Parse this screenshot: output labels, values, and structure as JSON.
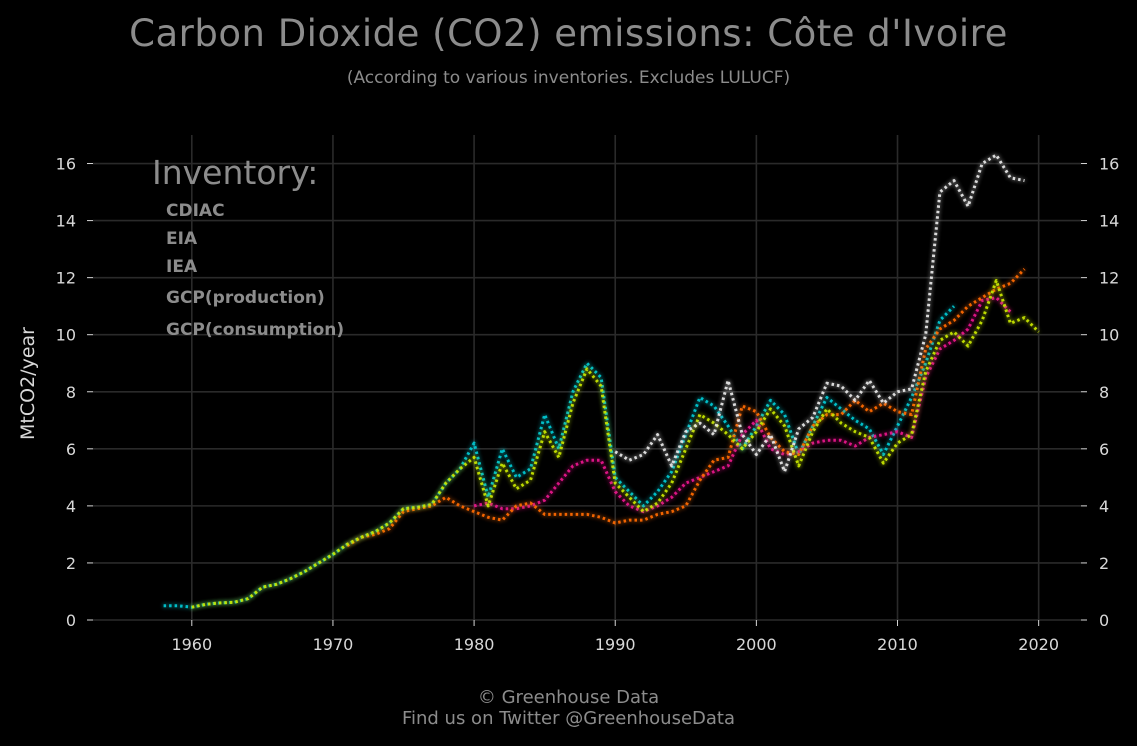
{
  "header": {
    "title": "Carbon Dioxide (CO2) emissions: Côte d'Ivoire",
    "subtitle": "(According to various inventories. Excludes LULUCF)"
  },
  "footer": {
    "line1": "© Greenhouse Data",
    "line2": "Find us on Twitter @GreenhouseData"
  },
  "chart_data": {
    "type": "line",
    "title": "Carbon Dioxide (CO2) emissions: Côte d'Ivoire",
    "subtitle": "(According to various inventories. Excludes LULUCF)",
    "xlabel": "",
    "ylabel": "MtCO2/year",
    "xlim": [
      1953,
      2023
    ],
    "ylim": [
      0,
      17
    ],
    "x_ticks": [
      1960,
      1970,
      1980,
      1990,
      2000,
      2010,
      2020
    ],
    "y_ticks": [
      0,
      2,
      4,
      6,
      8,
      10,
      12,
      14,
      16
    ],
    "grid": true,
    "legend": {
      "title": "Inventory:",
      "placement": "top-left"
    },
    "background": "#000000",
    "line_style": "dotted",
    "series": [
      {
        "name": "CDIAC",
        "color": "#00c8d2",
        "x": [
          1958,
          1959,
          1960,
          1961,
          1962,
          1963,
          1964,
          1965,
          1966,
          1967,
          1968,
          1969,
          1970,
          1971,
          1972,
          1973,
          1974,
          1975,
          1976,
          1977,
          1978,
          1979,
          1980,
          1981,
          1982,
          1983,
          1984,
          1985,
          1986,
          1987,
          1988,
          1989,
          1990,
          1991,
          1992,
          1993,
          1994,
          1995,
          1996,
          1997,
          1998,
          1999,
          2000,
          2001,
          2002,
          2003,
          2004,
          2005,
          2006,
          2007,
          2008,
          2009,
          2010,
          2011,
          2012,
          2013,
          2014
        ],
        "y": [
          0.5,
          0.5,
          0.45,
          0.55,
          0.6,
          0.62,
          0.75,
          1.15,
          1.25,
          1.45,
          1.7,
          2.0,
          2.3,
          2.65,
          2.9,
          3.1,
          3.4,
          3.9,
          3.95,
          4.05,
          4.8,
          5.3,
          6.2,
          4.3,
          6.0,
          5.0,
          5.3,
          7.2,
          6.0,
          8.0,
          9.0,
          8.5,
          5.0,
          4.5,
          4.0,
          4.5,
          5.2,
          6.5,
          7.8,
          7.5,
          6.8,
          6.0,
          6.8,
          7.7,
          7.2,
          5.8,
          6.8,
          7.8,
          7.4,
          7.0,
          6.7,
          5.8,
          6.8,
          7.8,
          9.0,
          10.5,
          11.0
        ]
      },
      {
        "name": "EIA",
        "color": "#e8198c",
        "x": [
          1980,
          1981,
          1982,
          1983,
          1984,
          1985,
          1986,
          1987,
          1988,
          1989,
          1990,
          1991,
          1992,
          1993,
          1994,
          1995,
          1996,
          1997,
          1998,
          1999,
          2000,
          2001,
          2002,
          2003,
          2004,
          2005,
          2006,
          2007,
          2008,
          2009,
          2010,
          2011,
          2012,
          2013,
          2014,
          2015,
          2016,
          2017,
          2018
        ],
        "y": [
          4.0,
          4.1,
          3.9,
          3.9,
          4.0,
          4.2,
          4.8,
          5.4,
          5.6,
          5.6,
          4.5,
          4.0,
          3.8,
          4.0,
          4.3,
          4.8,
          5.0,
          5.2,
          5.4,
          6.5,
          7.0,
          6.0,
          5.8,
          5.9,
          6.2,
          6.3,
          6.3,
          6.1,
          6.4,
          6.5,
          6.6,
          6.4,
          8.5,
          9.5,
          9.8,
          10.2,
          11.2,
          11.3,
          10.8
        ]
      },
      {
        "name": "IEA",
        "color": "#ff6a00",
        "x": [
          1971,
          1972,
          1973,
          1974,
          1975,
          1976,
          1977,
          1978,
          1979,
          1980,
          1981,
          1982,
          1983,
          1984,
          1985,
          1986,
          1987,
          1988,
          1989,
          1990,
          1991,
          1992,
          1993,
          1994,
          1995,
          1996,
          1997,
          1998,
          1999,
          2000,
          2001,
          2002,
          2003,
          2004,
          2005,
          2006,
          2007,
          2008,
          2009,
          2010,
          2011,
          2012,
          2013,
          2014,
          2015,
          2016,
          2017,
          2018,
          2019
        ],
        "y": [
          2.6,
          2.9,
          3.0,
          3.2,
          3.8,
          3.9,
          4.0,
          4.3,
          4.0,
          3.8,
          3.6,
          3.5,
          4.0,
          4.1,
          3.7,
          3.7,
          3.7,
          3.7,
          3.6,
          3.4,
          3.5,
          3.5,
          3.7,
          3.8,
          4.0,
          4.9,
          5.6,
          5.7,
          7.5,
          7.3,
          6.4,
          5.9,
          5.8,
          6.8,
          7.2,
          7.2,
          7.7,
          7.3,
          7.6,
          7.3,
          7.2,
          9.5,
          10.2,
          10.5,
          11.0,
          11.3,
          11.6,
          11.8,
          12.3
        ]
      },
      {
        "name": "GCP(production)",
        "color": "#c8e600",
        "x": [
          1960,
          1961,
          1962,
          1963,
          1964,
          1965,
          1966,
          1967,
          1968,
          1969,
          1970,
          1971,
          1972,
          1973,
          1974,
          1975,
          1976,
          1977,
          1978,
          1979,
          1980,
          1981,
          1982,
          1983,
          1984,
          1985,
          1986,
          1987,
          1988,
          1989,
          1990,
          1991,
          1992,
          1993,
          1994,
          1995,
          1996,
          1997,
          1998,
          1999,
          2000,
          2001,
          2002,
          2003,
          2004,
          2005,
          2006,
          2007,
          2008,
          2009,
          2010,
          2011,
          2012,
          2013,
          2014,
          2015,
          2016,
          2017,
          2018,
          2019,
          2020
        ],
        "y": [
          0.45,
          0.55,
          0.6,
          0.62,
          0.75,
          1.15,
          1.25,
          1.45,
          1.7,
          2.0,
          2.3,
          2.65,
          2.9,
          3.1,
          3.4,
          3.9,
          3.95,
          4.05,
          4.8,
          5.3,
          5.7,
          4.0,
          5.5,
          4.6,
          4.9,
          6.6,
          5.7,
          7.6,
          8.8,
          8.2,
          4.8,
          4.3,
          3.8,
          4.1,
          4.8,
          6.0,
          7.2,
          6.9,
          6.5,
          6.0,
          6.6,
          7.4,
          6.8,
          5.4,
          6.6,
          7.4,
          6.9,
          6.6,
          6.4,
          5.5,
          6.2,
          6.5,
          8.7,
          9.8,
          10.1,
          9.6,
          10.5,
          11.9,
          10.4,
          10.6,
          10.1
        ]
      },
      {
        "name": "GCP(consumption)",
        "color": "#e6e6e6",
        "x": [
          1990,
          1991,
          1992,
          1993,
          1994,
          1995,
          1996,
          1997,
          1998,
          1999,
          2000,
          2001,
          2002,
          2003,
          2004,
          2005,
          2006,
          2007,
          2008,
          2009,
          2010,
          2011,
          2012,
          2013,
          2014,
          2015,
          2016,
          2017,
          2018,
          2019
        ],
        "y": [
          5.9,
          5.6,
          5.8,
          6.5,
          5.4,
          6.6,
          6.9,
          6.5,
          8.4,
          6.5,
          5.8,
          6.5,
          5.2,
          6.7,
          7.1,
          8.3,
          8.2,
          7.7,
          8.4,
          7.6,
          8.0,
          8.1,
          10.0,
          15.0,
          15.4,
          14.5,
          16.0,
          16.3,
          15.5,
          15.4
        ]
      }
    ]
  }
}
